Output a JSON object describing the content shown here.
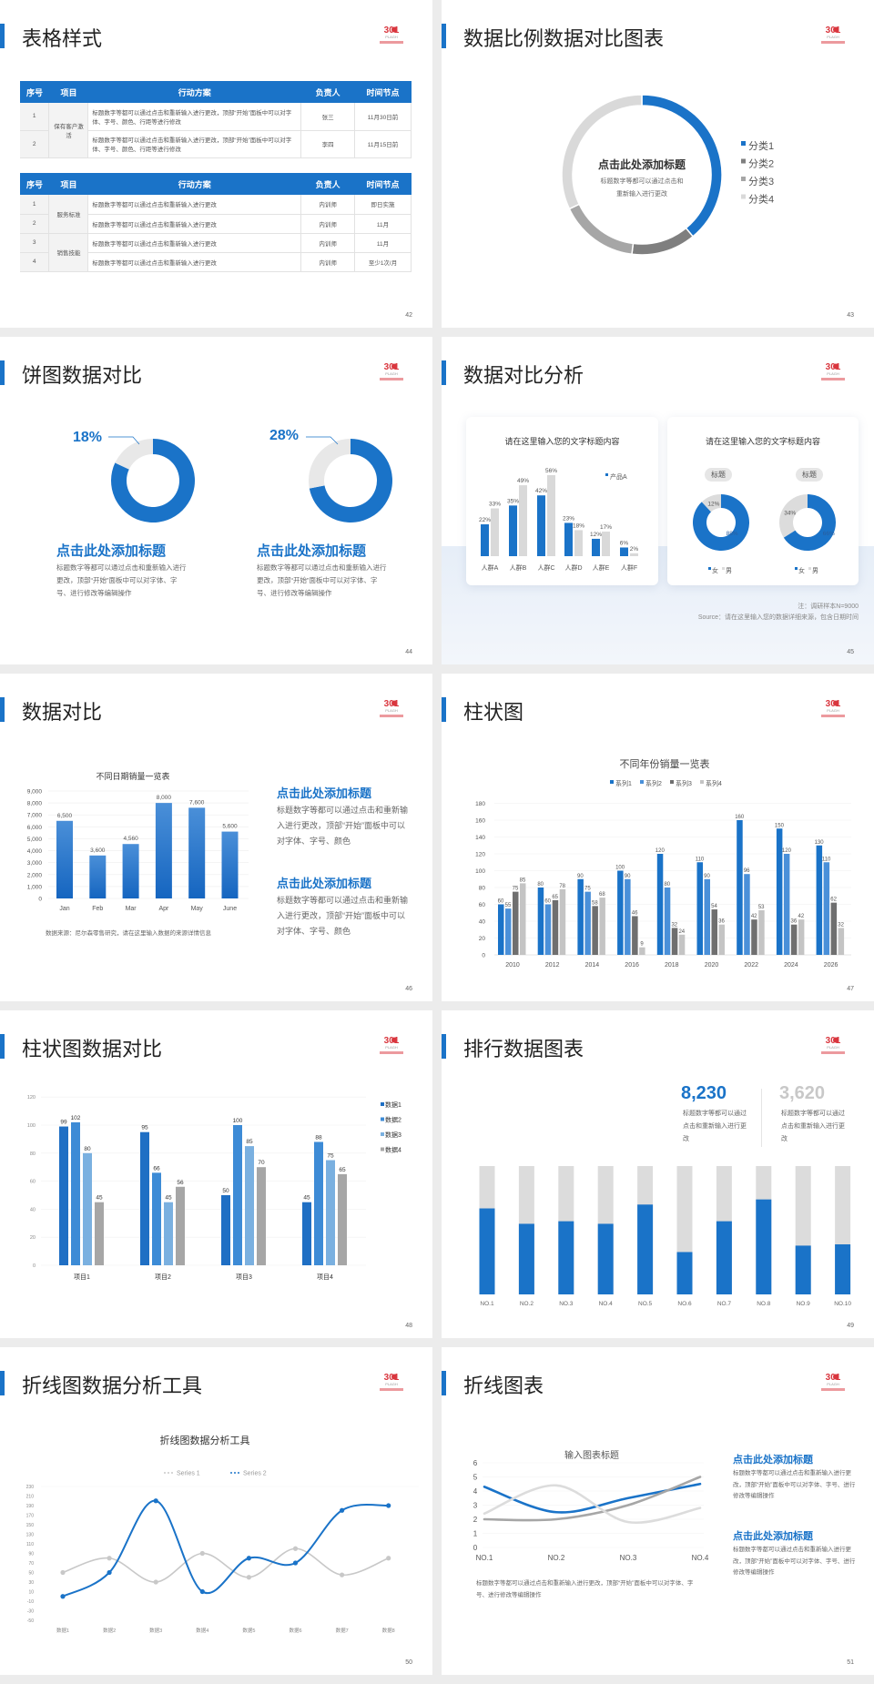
{
  "logo": {
    "text": "301",
    "sub": "PLAGH",
    "color": "#d9363e"
  },
  "colors": {
    "accent": "#1a73c8",
    "gray": "#d9d9d9"
  },
  "slides": [
    {
      "title": "表格样式",
      "page": "42",
      "table_headers": [
        "序号",
        "项目",
        "行动方案",
        "负责人",
        "时间节点"
      ],
      "tables": [
        [
          {
            "item": "保有客户激活",
            "rows": [
              {
                "no": "1",
                "plan": "标题数字等都可以通过点击和重新输入进行更改，顶部“开始”面板中可以对字体、字号、颜色、行距等进行修改",
                "owner": "张三",
                "time": "11月30日前"
              },
              {
                "no": "2",
                "plan": "标题数字等都可以通过点击和重新输入进行更改，顶部“开始”面板中可以对字体、字号、颜色、行距等进行修改",
                "owner": "李四",
                "time": "11月15日前"
              }
            ]
          }
        ],
        [
          {
            "item": "服务标准",
            "rows": [
              {
                "no": "1",
                "plan": "标题数字等都可以通过点击和重新输入进行更改",
                "owner": "内训师",
                "time": "即日实施"
              },
              {
                "no": "2",
                "plan": "标题数字等都可以通过点击和重新输入进行更改",
                "owner": "内训师",
                "time": "11月"
              }
            ]
          },
          {
            "item": "销售技能",
            "rows": [
              {
                "no": "3",
                "plan": "标题数字等都可以通过点击和重新输入进行更改",
                "owner": "内训师",
                "time": "11月"
              },
              {
                "no": "4",
                "plan": "标题数字等都可以通过点击和重新输入进行更改",
                "owner": "内训师",
                "time": "至少1次/月"
              }
            ]
          }
        ]
      ]
    },
    {
      "title": "数据比例数据对比图表",
      "page": "43",
      "center_title": "点击此处添加标题",
      "center_body_1": "标题数字等都可以通过点击和",
      "center_body_2": "重新输入进行更改"
    },
    {
      "title": "饼图数据对比",
      "page": "44",
      "items": [
        {
          "percent": "18%",
          "heading": "点击此处添加标题",
          "body": "标题数字等都可以通过点击和重新输入进行更改，顶部“开始”面板中可以对字体、字号、进行修改等编辑操作"
        },
        {
          "percent": "28%",
          "heading": "点击此处添加标题",
          "body": "标题数字等都可以通过点击和重新输入进行更改，顶部“开始”面板中可以对字体、字号、进行修改等编辑操作"
        }
      ]
    },
    {
      "title": "数据对比分析",
      "page": "45",
      "card1_title": "请在这里输入您的文字标题内容",
      "card2_title": "请在这里输入您的文字标题内容",
      "pill": "标题",
      "note": "注：调研样本N=9000",
      "source": "Source：请在这里输入您的数据详细来源，包含日期时间"
    },
    {
      "title": "数据对比",
      "page": "46",
      "source": "数据来源：尼尔森零售研究，请在这里输入数据的来源详情信息",
      "blocks": [
        {
          "heading": "点击此处添加标题",
          "body": "标题数字等都可以通过点击和重新输入进行更改，顶部“开始”面板中可以对字体、字号、颜色"
        },
        {
          "heading": "点击此处添加标题",
          "body": "标题数字等都可以通过点击和重新输入进行更改，顶部“开始”面板中可以对字体、字号、颜色"
        }
      ]
    },
    {
      "title": "柱状图",
      "page": "47"
    },
    {
      "title": "柱状图数据对比",
      "page": "48"
    },
    {
      "title": "排行数据图表",
      "page": "49",
      "stats": [
        {
          "value": "8,230",
          "desc": "标题数字等都可以通过点击和重新输入进行更改",
          "color": "#1a73c8"
        },
        {
          "value": "3,620",
          "desc": "标题数字等都可以通过点击和重新输入进行更改",
          "color": "#c8c8c8"
        }
      ]
    },
    {
      "title": "折线图数据分析工具",
      "page": "50"
    },
    {
      "title": "折线图表",
      "page": "51",
      "bottom_text": "标题数字等都可以通过点击和重新输入进行更改，顶部“开始”面板中可以对字体、字号、进行修改等编辑操作",
      "blocks": [
        {
          "heading": "点击此处添加标题",
          "body": "标题数字等都可以通过点击和重新输入进行更改，顶部“开始”面板中可以对字体、字号、进行修改等编辑操作"
        },
        {
          "heading": "点击此处添加标题",
          "body": "标题数字等都可以通过点击和重新输入进行更改，顶部“开始”面板中可以对字体、字号、进行修改等编辑操作"
        }
      ]
    }
  ],
  "chart_data": [
    {
      "id": "ring43",
      "type": "pie",
      "donut": true,
      "categories": [
        "分类1",
        "分类2",
        "分类3",
        "分类4"
      ],
      "values": [
        39,
        13,
        16,
        32
      ],
      "colors": [
        "#1a73c8",
        "#7f7f7f",
        "#a6a6a6",
        "#d9d9d9"
      ],
      "legend": "right"
    },
    {
      "id": "donut44a",
      "type": "pie",
      "donut": true,
      "values": [
        82,
        18
      ],
      "labels": [
        "",
        "18%"
      ],
      "colors": [
        "#1a73c8",
        "#e8e8e8"
      ]
    },
    {
      "id": "donut44b",
      "type": "pie",
      "donut": true,
      "values": [
        72,
        28
      ],
      "labels": [
        "",
        "28%"
      ],
      "colors": [
        "#1a73c8",
        "#e8e8e8"
      ]
    },
    {
      "id": "bar45",
      "type": "bar",
      "categories": [
        "人群A",
        "人群B",
        "人群C",
        "人群D",
        "人群E",
        "人群F"
      ],
      "series": [
        {
          "name": "产品A",
          "values": [
            22,
            35,
            42,
            23,
            12,
            6
          ],
          "color": "#1a73c8"
        },
        {
          "values": [
            33,
            49,
            56,
            18,
            17,
            2
          ],
          "color": "#d9d9d9"
        }
      ],
      "unit": "%",
      "legend": "top-right"
    },
    {
      "id": "donut45a",
      "type": "pie",
      "donut": true,
      "categories": [
        "女",
        "男"
      ],
      "values": [
        88,
        12
      ],
      "labels": [
        "88%",
        "12%"
      ],
      "colors": [
        "#1a73c8",
        "#dcdcdc"
      ],
      "legend": "bottom"
    },
    {
      "id": "donut45b",
      "type": "pie",
      "donut": true,
      "categories": [
        "女",
        "男"
      ],
      "values": [
        66,
        34
      ],
      "labels": [
        "66%",
        "34%"
      ],
      "colors": [
        "#1a73c8",
        "#dcdcdc"
      ],
      "legend": "bottom"
    },
    {
      "id": "bar46",
      "type": "bar",
      "title": "不同日期销量一览表",
      "categories": [
        "Jan",
        "Feb",
        "Mar",
        "Apr",
        "May",
        "June"
      ],
      "values": [
        6500,
        3600,
        4560,
        8000,
        7600,
        5600
      ],
      "value_labels": [
        "6,500",
        "3,600",
        "4,560",
        "8,000",
        "7,600",
        "5,600"
      ],
      "ylim": [
        0,
        9000
      ],
      "yticks": [
        "0",
        "1,000",
        "2,000",
        "3,000",
        "4,000",
        "5,000",
        "6,000",
        "7,000",
        "8,000",
        "9,000"
      ],
      "grid": true
    },
    {
      "id": "bar47",
      "type": "bar",
      "title": "不同年份销量一览表",
      "categories": [
        "2010",
        "2012",
        "2014",
        "2016",
        "2018",
        "2020",
        "2022",
        "2024",
        "2026"
      ],
      "series": [
        {
          "name": "系列1",
          "values": [
            60,
            80,
            90,
            100,
            120,
            110,
            160,
            150,
            130
          ],
          "color": "#1a73c8"
        },
        {
          "name": "系列2",
          "values": [
            55,
            60,
            75,
            90,
            80,
            90,
            96,
            120,
            110
          ],
          "color": "#4a90d9"
        },
        {
          "name": "系列3",
          "values": [
            75,
            65,
            58,
            46,
            32,
            54,
            42,
            36,
            62
          ],
          "color": "#6f6f6f"
        },
        {
          "name": "系列4",
          "values": [
            85,
            78,
            68,
            9,
            24,
            36,
            53,
            42,
            32
          ],
          "color": "#c4c4c4"
        }
      ],
      "ylim": [
        0,
        180
      ],
      "yticks": [
        "0",
        "20",
        "40",
        "60",
        "80",
        "100",
        "120",
        "140",
        "160",
        "180"
      ],
      "legend": "top",
      "grid": true
    },
    {
      "id": "bar48",
      "type": "bar",
      "categories": [
        "项目1",
        "项目2",
        "项目3",
        "项目4"
      ],
      "series": [
        {
          "name": "数据1",
          "values": [
            99,
            95,
            50,
            45
          ],
          "color": "#1f6fc4"
        },
        {
          "name": "数据2",
          "values": [
            102,
            66,
            100,
            88
          ],
          "color": "#3d8bd6"
        },
        {
          "name": "数据3",
          "values": [
            80,
            45,
            85,
            75
          ],
          "color": "#7ab0e0"
        },
        {
          "name": "数据4",
          "values": [
            45,
            56,
            70,
            65
          ],
          "color": "#a6a6a6"
        }
      ],
      "ylim": [
        0,
        120
      ],
      "yticks": [
        "0",
        "20",
        "40",
        "60",
        "80",
        "100",
        "120"
      ],
      "legend": "right",
      "grid": true
    },
    {
      "id": "bar49",
      "type": "bar",
      "stacked_percent": true,
      "categories": [
        "NO.1",
        "NO.2",
        "NO.3",
        "NO.4",
        "NO.5",
        "NO.6",
        "NO.7",
        "NO.8",
        "NO.9",
        "NO.10"
      ],
      "values": [
        0.67,
        0.55,
        0.57,
        0.55,
        0.7,
        0.33,
        0.57,
        0.74,
        0.38,
        0.39
      ],
      "colors": [
        "#1a73c8",
        "#dcdcdc"
      ]
    },
    {
      "id": "line50",
      "type": "line",
      "title": "折线图数据分析工具",
      "categories": [
        "数据1",
        "数据2",
        "数据3",
        "数据4",
        "数据5",
        "数据6",
        "数据7",
        "数据8"
      ],
      "series": [
        {
          "name": "Series 1",
          "values": [
            50,
            80,
            30,
            90,
            40,
            100,
            45,
            80
          ],
          "color": "#c8c8c8"
        },
        {
          "name": "Series 2",
          "values": [
            0,
            50,
            200,
            10,
            80,
            70,
            180,
            190
          ],
          "color": "#1a73c8"
        }
      ],
      "ylim": [
        -50,
        230
      ],
      "yticks": [
        "-50",
        "-30",
        "-10",
        "10",
        "30",
        "50",
        "70",
        "90",
        "110",
        "130",
        "150",
        "170",
        "190",
        "210",
        "230"
      ],
      "legend": "top",
      "smooth": true
    },
    {
      "id": "line51",
      "type": "line",
      "title": "输入图表标题",
      "categories": [
        "NO.1",
        "NO.2",
        "NO.3",
        "NO.4"
      ],
      "series": [
        {
          "values": [
            4.3,
            2.5,
            3.5,
            4.5
          ],
          "color": "#1a73c8"
        },
        {
          "values": [
            2.0,
            2.0,
            3.0,
            5.0
          ],
          "color": "#a6a6a6"
        },
        {
          "values": [
            2.4,
            4.4,
            1.8,
            2.8
          ],
          "color": "#dcdcdc"
        }
      ],
      "ylim": [
        0,
        6
      ],
      "yticks": [
        "0",
        "1",
        "2",
        "3",
        "4",
        "5",
        "6"
      ],
      "smooth": true,
      "grid": true
    }
  ]
}
